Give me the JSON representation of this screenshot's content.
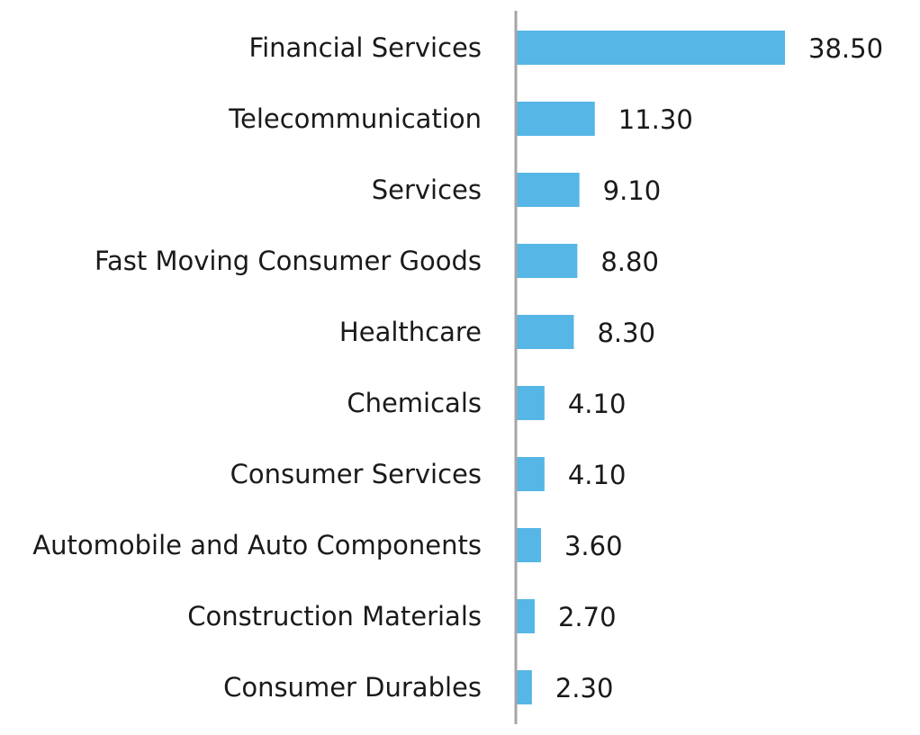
{
  "chart_data": {
    "type": "bar",
    "orientation": "horizontal",
    "categories": [
      "Financial Services",
      "Telecommunication",
      "Services",
      "Fast Moving Consumer Goods",
      "Healthcare",
      "Chemicals",
      "Consumer Services",
      "Automobile and Auto Components",
      "Construction Materials",
      "Consumer Durables"
    ],
    "values": [
      38.5,
      11.3,
      9.1,
      8.8,
      8.3,
      4.1,
      4.1,
      3.6,
      2.7,
      2.3
    ],
    "value_labels": [
      "38.50",
      "11.30",
      "9.10",
      "8.80",
      "8.30",
      "4.10",
      "4.10",
      "3.60",
      "2.70",
      "2.30"
    ],
    "title": "",
    "xlabel": "",
    "ylabel": "",
    "xlim": [
      0,
      38.5
    ],
    "grid": false,
    "legend": "none",
    "colors": {
      "bar": "#56b6e6",
      "axis": "#a6a6a6",
      "text": "#1a1a1a"
    }
  }
}
